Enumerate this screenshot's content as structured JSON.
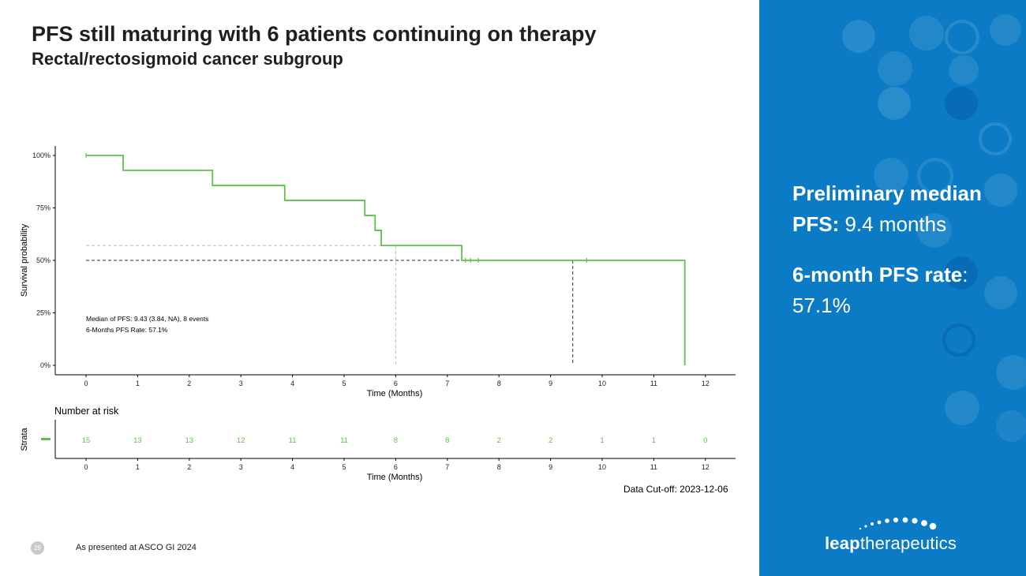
{
  "slide": {
    "title": "PFS still maturing with 6 patients continuing on therapy",
    "subtitle": "Rectal/rectosigmoid cancer subgroup",
    "page_number": "29",
    "footnote": "As presented at ASCO GI 2024",
    "data_cutoff": "Data Cut-off: 2023-12-06"
  },
  "panel": {
    "median_label": "Preliminary median PFS:",
    "median_value": "9.4 months",
    "rate_label": "6-month PFS rate",
    "rate_colon": ":",
    "rate_value": "57.1%",
    "background": "#0a7bc4"
  },
  "logo": {
    "bold": "leap",
    "light": "therapeutics"
  },
  "colors": {
    "curve": "#5cc24a",
    "axis": "#000000",
    "ref_dark": "#333333",
    "ref_light": "#bbbbbb"
  },
  "chart_data": {
    "type": "line",
    "subtype": "kaplan-meier",
    "xlabel": "Time (Months)",
    "ylabel": "Survival probability",
    "xlim": [
      -0.6,
      12.6
    ],
    "ylim": [
      0,
      100
    ],
    "xticks": [
      0,
      1,
      2,
      3,
      4,
      5,
      6,
      7,
      8,
      9,
      10,
      11,
      12
    ],
    "yticks": [
      0,
      25,
      50,
      75,
      100
    ],
    "ytick_labels": [
      "0%",
      "25%",
      "50%",
      "75%",
      "100%"
    ],
    "series": [
      {
        "name": "PFS",
        "step_times": [
          0,
          0.72,
          2.45,
          3.85,
          5.4,
          5.6,
          5.72,
          7.28,
          11.6
        ],
        "step_values": [
          100,
          92.9,
          85.7,
          78.6,
          71.4,
          64.3,
          57.1,
          50.0,
          0
        ],
        "end_time": 11.6,
        "censor_times": [
          0,
          7.35,
          7.45,
          7.6,
          9.7
        ]
      }
    ],
    "reference_lines": [
      {
        "x": 9.43,
        "y": 50,
        "style": "dark"
      },
      {
        "x": 6,
        "y": 57.1,
        "style": "light"
      }
    ],
    "annotations": [
      "Median of PFS: 9.43 (3.84, NA), 8 events",
      "6-Months PFS Rate: 57.1%"
    ],
    "risk_table": {
      "title": "Number at risk",
      "ylabel": "Strata",
      "times": [
        0,
        1,
        2,
        3,
        4,
        5,
        6,
        7,
        8,
        9,
        10,
        11,
        12
      ],
      "counts": [
        15,
        13,
        13,
        12,
        11,
        11,
        8,
        8,
        2,
        2,
        1,
        1,
        0
      ],
      "xlabel": "Time (Months)"
    }
  }
}
